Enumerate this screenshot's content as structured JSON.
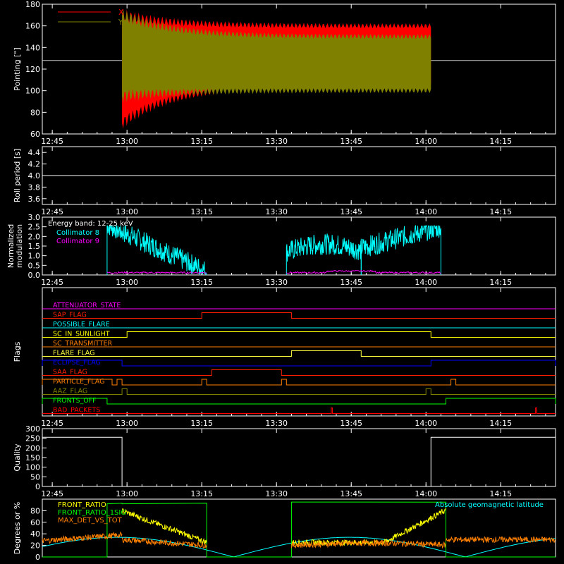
{
  "chart_data": [
    {
      "id": "pointing",
      "type": "area",
      "ylabel": "Pointing [\"]",
      "ylim": [
        60,
        180
      ],
      "yticks": [
        60,
        80,
        100,
        120,
        140,
        160,
        180
      ],
      "xticks": [
        "12:45",
        "13:00",
        "13:15",
        "13:30",
        "13:45",
        "14:00",
        "14:15"
      ],
      "reference_line": 128,
      "legend": [
        {
          "name": "X",
          "color": "#ff0000"
        },
        {
          "name": "Y",
          "color": "#808000"
        }
      ],
      "series": [
        {
          "name": "X",
          "color": "#ff0000",
          "x_range": [
            "12:59",
            "14:01"
          ],
          "upper_start": 170,
          "upper_end": 160,
          "lower_start": 70,
          "lower_end": 105
        },
        {
          "name": "Y",
          "color": "#808000",
          "x_range": [
            "12:59",
            "14:01"
          ],
          "upper_start": 170,
          "upper_end": 150,
          "lower_start": 95,
          "lower_end": 100
        }
      ]
    },
    {
      "id": "roll",
      "type": "line",
      "ylabel": "Roll period [s]",
      "ylim": [
        3.5,
        4.5
      ],
      "yticks": [
        3.6,
        3.8,
        4.0,
        4.2,
        4.4
      ],
      "xticks": [
        "12:45",
        "13:00",
        "13:15",
        "13:30",
        "13:45",
        "14:00",
        "14:15"
      ],
      "series": [
        {
          "name": "",
          "color": "#ffffff",
          "y": 4.0
        }
      ]
    },
    {
      "id": "modulation",
      "type": "line",
      "ylabel": "Normalized modulation",
      "ylim": [
        0,
        3.0
      ],
      "yticks": [
        0.0,
        0.5,
        1.0,
        1.5,
        2.0,
        2.5,
        3.0
      ],
      "xticks": [
        "12:45",
        "13:00",
        "13:15",
        "13:30",
        "13:45",
        "14:00",
        "14:15"
      ],
      "annotation": "Energy band: 12-25 keV",
      "legend": [
        {
          "name": "Collimator 8",
          "color": "#00ffff"
        },
        {
          "name": "Collimator 9",
          "color": "#ff00ff"
        }
      ],
      "segments": [
        {
          "start": "12:56",
          "end": "13:16",
          "y_start": 2.6,
          "y_end": 0.2
        },
        {
          "start": "13:32",
          "end": "13:47",
          "y_start": 1.6,
          "y_end": 1.6
        },
        {
          "start": "13:47",
          "end": "14:03",
          "y_start": 1.4,
          "y_end": 2.5
        }
      ]
    },
    {
      "id": "flags",
      "type": "line",
      "ylabel": "Flags",
      "xticks": [
        "12:45",
        "13:00",
        "13:15",
        "13:30",
        "13:45",
        "14:00",
        "14:15"
      ],
      "rows": [
        {
          "label": "ATTENUATOR_STATE",
          "color": "#ff00ff",
          "high": []
        },
        {
          "label": "SAP_FLAG",
          "color": "#ff2000",
          "high": [
            [
              "13:15",
              "13:33"
            ]
          ]
        },
        {
          "label": "POSSIBLE_FLARE",
          "color": "#00ffff",
          "high": []
        },
        {
          "label": "SC_IN_SUNLIGHT",
          "color": "#ffff00",
          "high": [
            [
              "13:00",
              "14:01"
            ]
          ]
        },
        {
          "label": "SC_TRANSMITTER",
          "color": "#ff8000",
          "high": []
        },
        {
          "label": "FLARE_FLAG",
          "color": "#ffff40",
          "high": [
            [
              "13:33",
              "13:47"
            ]
          ]
        },
        {
          "label": "ECLIPSE_FLAG",
          "color": "#0000ff",
          "high": [
            [
              "12:43",
              "12:59"
            ],
            [
              "14:01",
              "14:26"
            ]
          ]
        },
        {
          "label": "SAA_FLAG",
          "color": "#ff2000",
          "high": [
            [
              "13:17",
              "13:31"
            ]
          ]
        },
        {
          "label": "PARTICLE_FLAG",
          "color": "#ff8000",
          "high": [
            [
              "12:43",
              "12:57"
            ],
            [
              "12:58",
              "12:59"
            ],
            [
              "13:15",
              "13:16"
            ],
            [
              "13:31",
              "13:32"
            ],
            [
              "14:05",
              "14:06"
            ]
          ]
        },
        {
          "label": "AAZ_FLAG",
          "color": "#808000",
          "high": [
            [
              "12:59",
              "13:00"
            ],
            [
              "14:00",
              "14:01"
            ]
          ]
        },
        {
          "label": "FRONTS_OFF",
          "color": "#00ff00",
          "high": [
            [
              "12:43",
              "12:56"
            ],
            [
              "14:04",
              "14:26"
            ]
          ]
        },
        {
          "label": "BAD_PACKETS",
          "color": "#ff0000",
          "high": [
            [
              "13:41",
              "13:41"
            ],
            [
              "14:22",
              "14:22"
            ]
          ]
        }
      ]
    },
    {
      "id": "quality",
      "type": "line",
      "ylabel": "Quality",
      "ylim": [
        0,
        300
      ],
      "yticks": [
        0,
        50,
        100,
        150,
        200,
        250,
        300
      ],
      "xticks": [
        "12:45",
        "13:00",
        "13:15",
        "13:30",
        "13:45",
        "14:00",
        "14:15"
      ],
      "segments": [
        {
          "start": "12:43",
          "end": "12:59",
          "y": 255
        },
        {
          "start": "12:59",
          "end": "14:01",
          "y": 0
        },
        {
          "start": "14:01",
          "end": "14:26",
          "y": 255
        }
      ]
    },
    {
      "id": "ratios",
      "type": "line",
      "ylabel": "Degrees or %",
      "ylim": [
        0,
        100
      ],
      "yticks": [
        0,
        20,
        40,
        60,
        80
      ],
      "legend": [
        {
          "name": "FRONT_RATIO",
          "color": "#ffff00"
        },
        {
          "name": "FRONT_RATIO_1SIG",
          "color": "#00ff00"
        },
        {
          "name": "MAX_DET_VS_TOT",
          "color": "#ff8000"
        }
      ],
      "annotation": "Absolute geomagnetic latitude",
      "annotation_color": "#00ffff"
    }
  ]
}
